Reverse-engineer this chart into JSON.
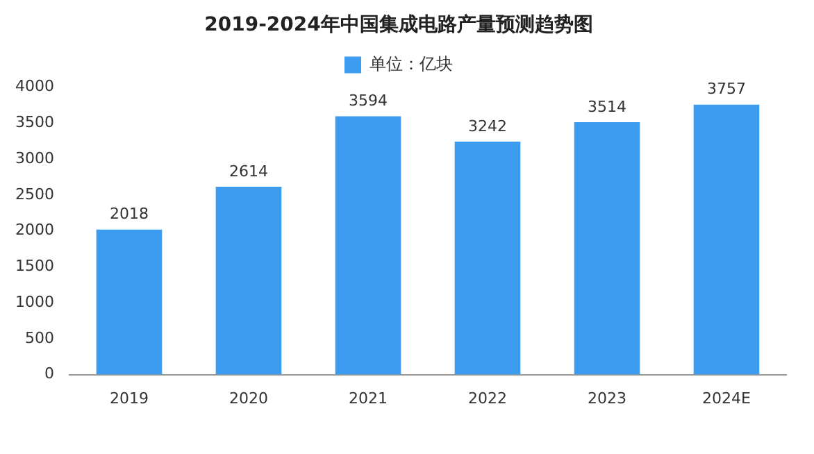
{
  "chart_data": {
    "type": "bar",
    "title": "2019-2024年中国集成电路产量预测趋势图",
    "categories": [
      "2019",
      "2020",
      "2021",
      "2022",
      "2023",
      "2024E"
    ],
    "series": [
      {
        "name": "单位：亿块",
        "color": "#3d9cf0",
        "values": [
          2018,
          2614,
          3594,
          3242,
          3514,
          3757
        ]
      }
    ],
    "ylim": [
      0,
      4000
    ],
    "yticks": [
      0,
      500,
      1000,
      1500,
      2000,
      2500,
      3000,
      3500,
      4000
    ],
    "grid": false,
    "legend": "top",
    "data_labels": true
  }
}
